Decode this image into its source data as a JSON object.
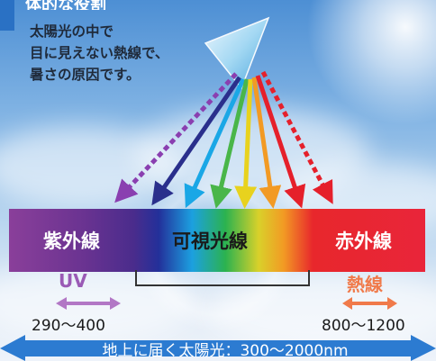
{
  "header": {
    "title": "体的な役割"
  },
  "description": {
    "lines": [
      "太陽光の中で",
      "目に見えない熱線で、",
      "暑さの原因です。"
    ]
  },
  "spectrum": {
    "uv_band": "紫外線",
    "visible_band": "可視光線",
    "ir_band": "赤外線"
  },
  "labels": {
    "uv": "UV",
    "heat": "熱線"
  },
  "ranges": {
    "uv_range": "290〜400",
    "heat_range": "800〜1200"
  },
  "footer": {
    "total": "地上に届く太陽光：300〜2000nm"
  },
  "colors": {
    "uv_arrow": "#9a5ab5",
    "heat_arrow": "#f07a4a",
    "footer_arrow": "#2c7bd1"
  }
}
